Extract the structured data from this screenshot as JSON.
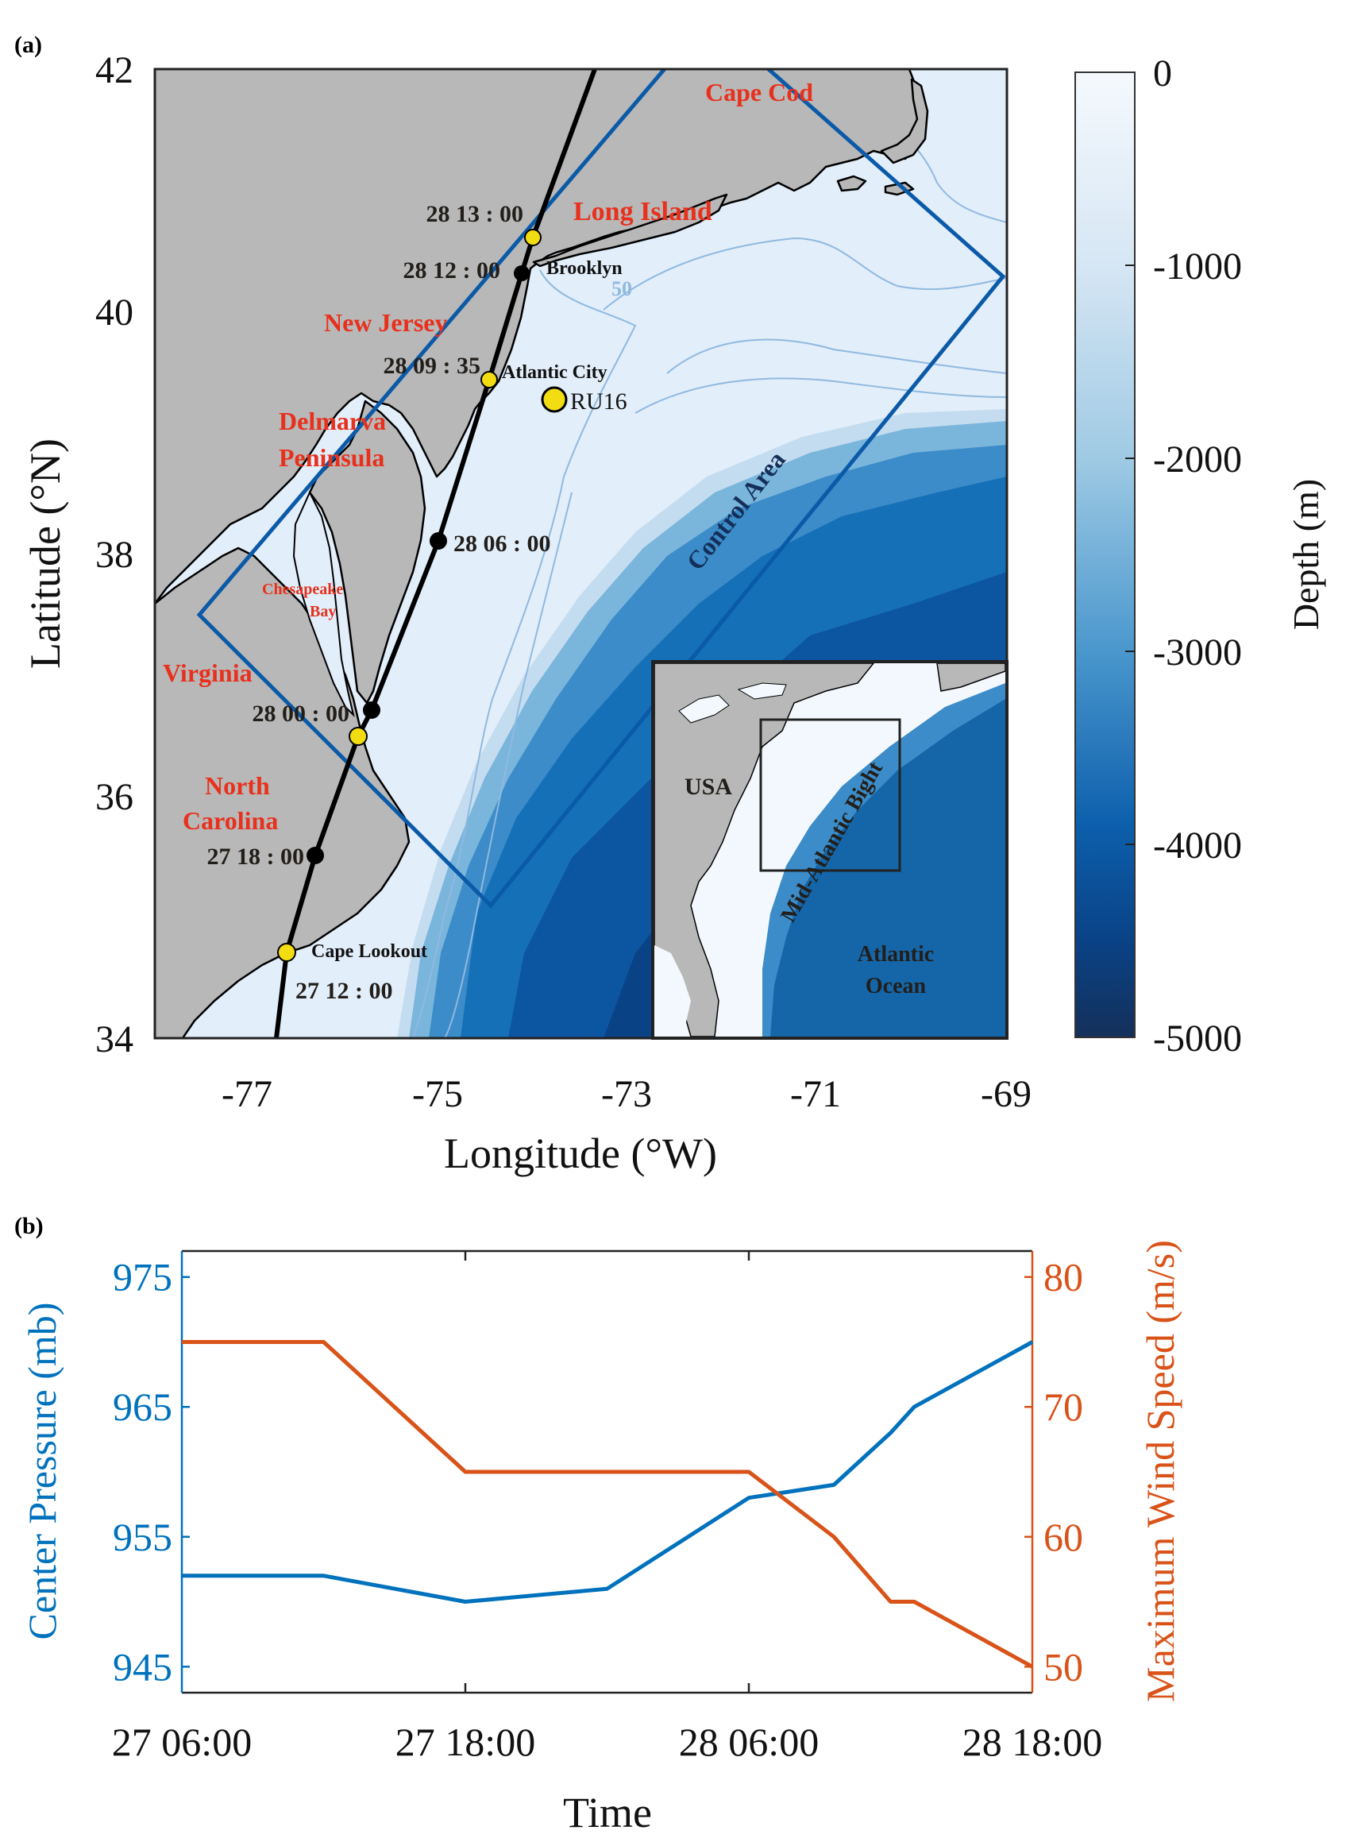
{
  "figure": {
    "panel_a_label": "(a)",
    "panel_b_label": "(b)"
  },
  "map": {
    "xlabel": "Longitude (°W)",
    "ylabel": "Latitude (°N)",
    "x_ticks": [
      "-77",
      "-75",
      "-73",
      "-71",
      "-69"
    ],
    "y_ticks": [
      "42",
      "40",
      "38",
      "36",
      "34"
    ],
    "lon_range": [
      -78,
      -69
    ],
    "lat_range": [
      34,
      42
    ],
    "colorbar": {
      "label": "Depth (m)",
      "ticks": [
        "0",
        "-1000",
        "-2000",
        "-3000",
        "-4000",
        "-5000"
      ],
      "range": [
        -5000,
        0
      ],
      "color_top": "#f5f9fd",
      "color_bottom": "#14305a"
    },
    "region_labels": {
      "cape_cod": "Cape Cod",
      "long_island": "Long Island",
      "new_jersey": "New Jersey",
      "delmarva_1": "Delmarva",
      "delmarva_2": "Peninsula",
      "chesapeake_1": "Chesapeake",
      "chesapeake_2": "Bay",
      "virginia": "Virginia",
      "north_carolina_1": "North",
      "north_carolina_2": "Carolina"
    },
    "place_labels": {
      "brooklyn": "Brooklyn",
      "atlantic_city": "Atlantic City",
      "ru16": "RU16",
      "cape_lookout": "Cape Lookout"
    },
    "track_times": {
      "t_28_1300": "28  13 : 00",
      "t_28_1200": "28  12 : 00",
      "t_28_0935": "28  09 : 35",
      "t_28_0600": "28  06 : 00",
      "t_28_0000": "28  00 : 00",
      "t_27_1800": "27  18 : 00",
      "t_27_1200": "27  12 : 00"
    },
    "contour_label": "50",
    "control_area_label": "Control Area",
    "inset": {
      "usa": "USA",
      "bight": "Mid-Atlantic Bight",
      "ocean_1": "Atlantic",
      "ocean_2": "Ocean"
    },
    "colors": {
      "land": "#b8b8b8",
      "shelf": "#e2eefa",
      "control_box": "#0a5aa8",
      "region_label": "#e8301c",
      "track": "#000000",
      "landfall_marker": "#f2dc12"
    }
  },
  "chart_data": {
    "type": "line",
    "title": "",
    "xlabel": "Time",
    "x_ticks": [
      "27 06:00",
      "27 18:00",
      "28 06:00",
      "28 18:00"
    ],
    "x_unit": "hours since 27 06:00",
    "x_range": [
      0,
      36
    ],
    "y_left": {
      "label": "Center Pressure (mb)",
      "ticks": [
        "975",
        "965",
        "955",
        "945"
      ],
      "range": [
        943,
        977
      ],
      "color": "#0072bd"
    },
    "y_right": {
      "label": "Maximum Wind Speed (m/s)",
      "ticks": [
        "80",
        "70",
        "60",
        "50"
      ],
      "range": [
        48,
        82
      ],
      "color": "#d95319"
    },
    "grid": false,
    "series": [
      {
        "name": "Center Pressure",
        "axis": "left",
        "x": [
          0,
          6,
          12,
          18,
          24,
          27.6,
          30,
          31,
          36
        ],
        "values": [
          952,
          952,
          950,
          951,
          958,
          959,
          963,
          965,
          970
        ]
      },
      {
        "name": "Maximum Wind Speed",
        "axis": "right",
        "x": [
          0,
          6,
          12,
          24,
          27.6,
          30,
          31,
          36
        ],
        "values": [
          75,
          75,
          65,
          65,
          60,
          55,
          55,
          50
        ]
      }
    ]
  }
}
